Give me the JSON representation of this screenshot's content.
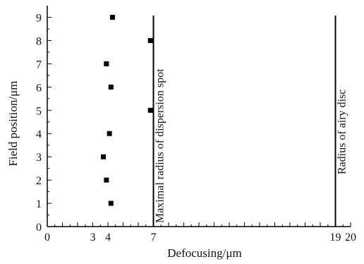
{
  "chart_data": {
    "type": "scatter",
    "xlabel": "Defocusing/μm",
    "ylabel": "Field position/μm",
    "xlim": [
      0,
      20
    ],
    "ylim": [
      0,
      9.5
    ],
    "x_ticks": [
      {
        "value": 0,
        "label": "0"
      },
      {
        "value": 3,
        "label": "3"
      },
      {
        "value": 4,
        "label": "4"
      },
      {
        "value": 7,
        "label": "7"
      },
      {
        "value": 19,
        "label": "19"
      },
      {
        "value": 20,
        "label": "20"
      }
    ],
    "y_ticks": [
      0,
      1,
      2,
      3,
      4,
      5,
      6,
      7,
      8,
      9
    ],
    "points": [
      {
        "x": 4.2,
        "y": 1
      },
      {
        "x": 3.9,
        "y": 2
      },
      {
        "x": 3.7,
        "y": 3
      },
      {
        "x": 4.1,
        "y": 4
      },
      {
        "x": 6.8,
        "y": 5
      },
      {
        "x": 4.2,
        "y": 6
      },
      {
        "x": 3.9,
        "y": 7
      },
      {
        "x": 6.8,
        "y": 8
      },
      {
        "x": 4.3,
        "y": 9
      }
    ],
    "vlines": [
      {
        "x": 7,
        "label": "Maximal radius of dispersion spot"
      },
      {
        "x": 19,
        "label": "Radius of airy disc"
      }
    ],
    "grid": false,
    "marker": "square",
    "color": "#000000"
  }
}
